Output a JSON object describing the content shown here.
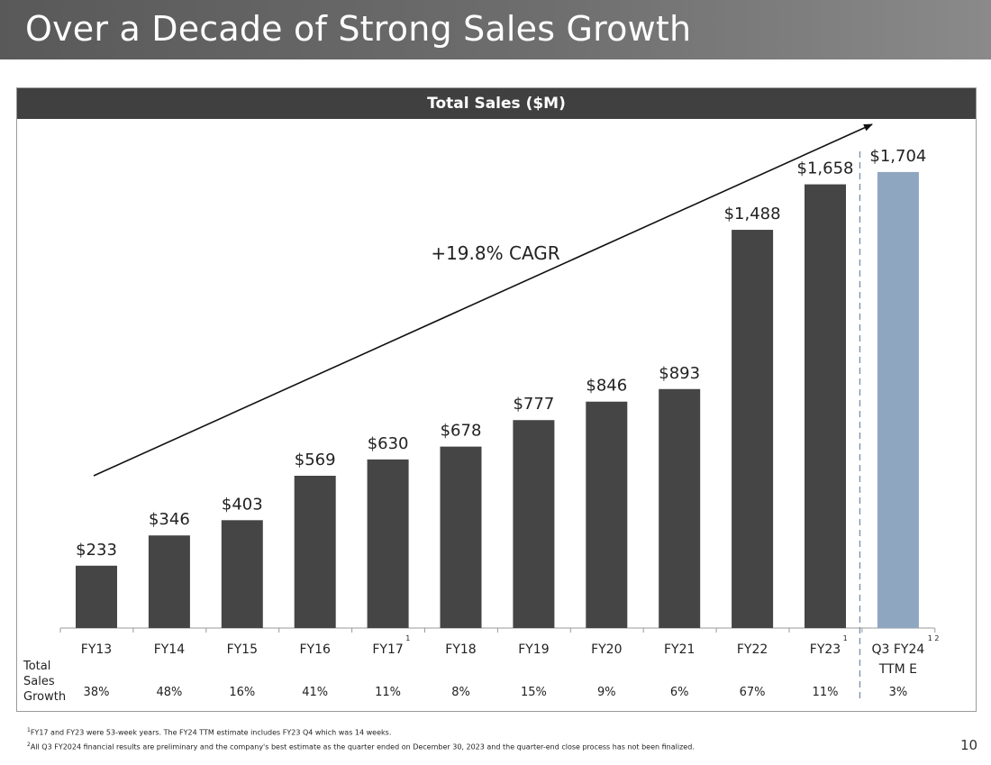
{
  "slide": {
    "title": "Over a Decade of Strong Sales Growth",
    "page_number": "10",
    "footnotes": [
      {
        "mark": "1",
        "text": "FY17 and FY23 were 53-week years. The FY24 TTM estimate includes FY23 Q4 which was 14 weeks."
      },
      {
        "mark": "2",
        "text": "All Q3 FY2024 financial results are preliminary and the company's best estimate as the quarter ended on December 30, 2023 and the quarter-end close process has not been finalized."
      }
    ]
  },
  "chart_data": {
    "type": "bar",
    "title": "Total Sales ($M)",
    "xlabel": "",
    "ylabel": "",
    "ylim": [
      0,
      1850
    ],
    "categories": [
      "FY13",
      "FY14",
      "FY15",
      "FY16",
      "FY17",
      "FY18",
      "FY19",
      "FY20",
      "FY21",
      "FY22",
      "FY23",
      "Q3 FY24 TTM E"
    ],
    "category_lines": [
      [
        "FY13"
      ],
      [
        "FY14"
      ],
      [
        "FY15"
      ],
      [
        "FY16"
      ],
      [
        "FY17"
      ],
      [
        "FY18"
      ],
      [
        "FY19"
      ],
      [
        "FY20"
      ],
      [
        "FY21"
      ],
      [
        "FY22"
      ],
      [
        "FY23"
      ],
      [
        "Q3 FY24",
        "TTM E"
      ]
    ],
    "category_superscripts": [
      "",
      "",
      "",
      "",
      "1",
      "",
      "",
      "",
      "",
      "",
      "1",
      "1 2"
    ],
    "values": [
      233,
      346,
      403,
      569,
      630,
      678,
      777,
      846,
      893,
      1488,
      1658,
      1704
    ],
    "value_labels": [
      "$233",
      "$346",
      "$403",
      "$569",
      "$630",
      "$678",
      "$777",
      "$846",
      "$893",
      "$1,488",
      "$1,658",
      "$1,704"
    ],
    "estimate_flags": [
      false,
      false,
      false,
      false,
      false,
      false,
      false,
      false,
      false,
      false,
      false,
      true
    ],
    "growth_row_label": [
      "Total",
      "Sales",
      "Growth"
    ],
    "growth": [
      "38%",
      "48%",
      "16%",
      "41%",
      "11%",
      "8%",
      "15%",
      "9%",
      "6%",
      "67%",
      "11%",
      "3%"
    ],
    "annotation": "+19.8% CAGR",
    "grid": false,
    "legend": "none",
    "colors": {
      "actual": "#454545",
      "estimate": "#8fa6c0",
      "divider": "#7f93ad",
      "header_bg": "#404040"
    }
  }
}
